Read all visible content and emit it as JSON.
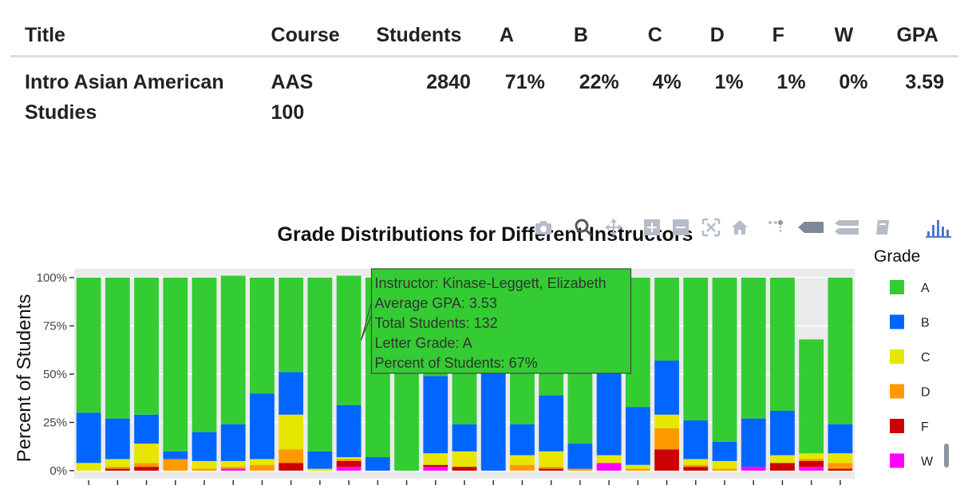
{
  "table": {
    "headers": [
      "Title",
      "Course",
      "Students",
      "A",
      "B",
      "C",
      "D",
      "F",
      "W",
      "GPA"
    ],
    "row": {
      "title_line1": "Intro Asian American",
      "title_line2": "Studies",
      "course_line1": "AAS",
      "course_line2": "100",
      "students": "2840",
      "a": "71%",
      "b": "22%",
      "c": "4%",
      "d": "1%",
      "f": "1%",
      "w": "0%",
      "gpa": "3.59"
    }
  },
  "chart_data": {
    "type": "bar",
    "stacked": true,
    "title": "Grade Distributions for Different Instructors",
    "ylabel": "Percent of Students",
    "xlabel": "",
    "ylim": [
      0,
      100
    ],
    "yticks": [
      "0%",
      "25%",
      "50%",
      "75%",
      "100%"
    ],
    "legend_title": "Grade",
    "legend_position": "right",
    "bar_count": 27,
    "series": [
      {
        "name": "W",
        "color": "#ff00ff",
        "values": [
          0,
          0,
          0,
          0,
          0,
          1,
          0,
          0,
          0,
          2,
          0,
          0,
          2,
          0,
          0,
          0,
          0,
          0,
          4,
          0,
          0,
          0,
          0,
          2,
          0,
          2,
          0
        ]
      },
      {
        "name": "F",
        "color": "#cc0000",
        "values": [
          0,
          1,
          2,
          0,
          0,
          0,
          0,
          4,
          0,
          3,
          0,
          0,
          1,
          2,
          0,
          0,
          1,
          0,
          0,
          0,
          11,
          2,
          0,
          0,
          4,
          3,
          1
        ]
      },
      {
        "name": "D",
        "color": "#ff9900",
        "values": [
          0,
          1,
          2,
          6,
          1,
          1,
          3,
          7,
          0,
          1,
          0,
          0,
          0,
          0,
          0,
          3,
          1,
          1,
          0,
          1,
          11,
          1,
          1,
          0,
          0,
          1,
          3
        ]
      },
      {
        "name": "C",
        "color": "#e6e600",
        "values": [
          4,
          4,
          10,
          0,
          4,
          3,
          3,
          18,
          1,
          1,
          0,
          0,
          6,
          8,
          0,
          5,
          8,
          0,
          4,
          2,
          7,
          3,
          4,
          0,
          4,
          3,
          5
        ]
      },
      {
        "name": "B",
        "color": "#0066ff",
        "values": [
          26,
          21,
          15,
          4,
          15,
          19,
          34,
          22,
          9,
          27,
          7,
          0,
          40,
          14,
          100,
          16,
          29,
          13,
          47,
          30,
          28,
          20,
          10,
          25,
          23,
          0,
          15
        ]
      },
      {
        "name": "A",
        "color": "#33cc33",
        "values": [
          70,
          73,
          71,
          90,
          80,
          77,
          60,
          49,
          90,
          67,
          93,
          100,
          51,
          76,
          0,
          76,
          61,
          86,
          45,
          67,
          43,
          74,
          85,
          73,
          69,
          59,
          76
        ]
      }
    ],
    "hover": {
      "bar_index": 9,
      "lines": [
        "Instructor: Kinase-Leggett, Elizabeth",
        "Average GPA: 3.53",
        "Total Students: 132",
        "Letter Grade: A",
        "Percent of Students: 67%"
      ]
    }
  }
}
